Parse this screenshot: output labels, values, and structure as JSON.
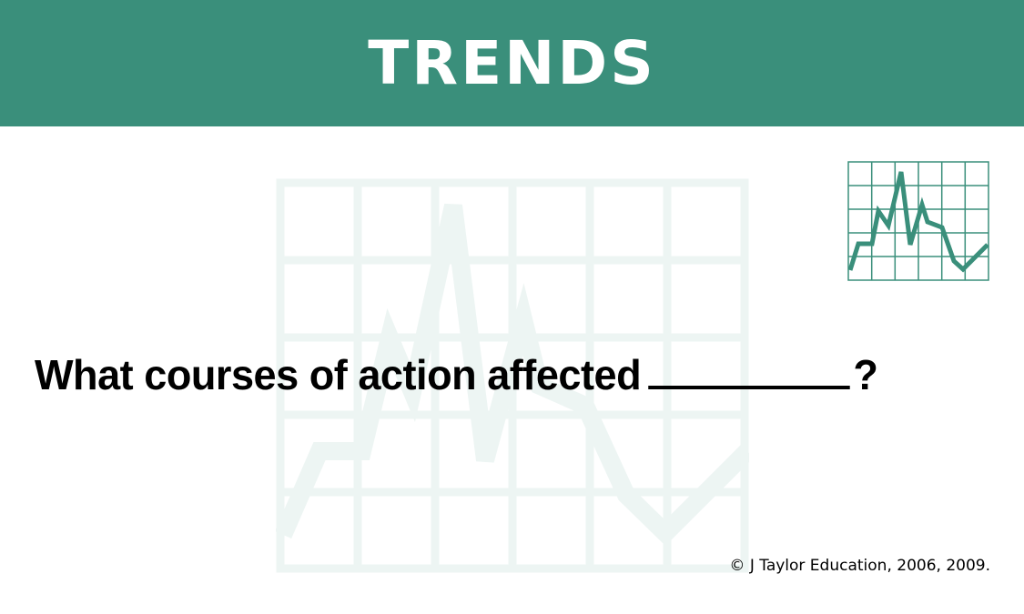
{
  "header": {
    "title": "TRENDS"
  },
  "question": {
    "text": "What courses of action affected",
    "end_mark": "?"
  },
  "footer": {
    "copyright": "© J Taylor Education, 2006, 2009."
  },
  "icons": {
    "background_graphic": "trend-chart-watermark-icon",
    "corner_graphic": "trend-chart-icon"
  },
  "colors": {
    "banner": "#3a8f7b",
    "watermark": "#edf5f3",
    "text": "#000000"
  }
}
